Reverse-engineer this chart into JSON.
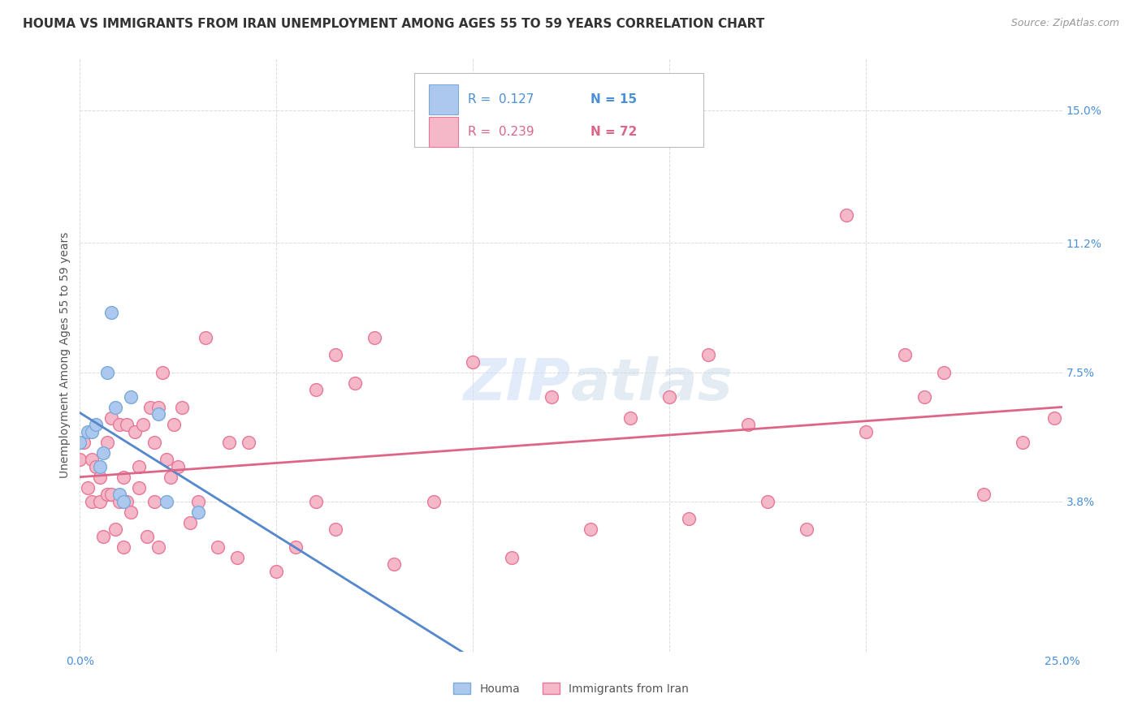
{
  "title": "HOUMA VS IMMIGRANTS FROM IRAN UNEMPLOYMENT AMONG AGES 55 TO 59 YEARS CORRELATION CHART",
  "source": "Source: ZipAtlas.com",
  "ylabel": "Unemployment Among Ages 55 to 59 years",
  "xlim": [
    0.0,
    0.25
  ],
  "ylim": [
    -0.005,
    0.165
  ],
  "xticks": [
    0.0,
    0.05,
    0.1,
    0.15,
    0.2,
    0.25
  ],
  "xticklabels": [
    "0.0%",
    "",
    "",
    "",
    "",
    "25.0%"
  ],
  "ytick_positions": [
    0.038,
    0.075,
    0.112,
    0.15
  ],
  "ytick_labels": [
    "3.8%",
    "7.5%",
    "11.2%",
    "15.0%"
  ],
  "watermark": "ZIPatlas",
  "houma_color": "#adc8ef",
  "iran_color": "#f5b8c8",
  "houma_edge": "#7aaad8",
  "iran_edge": "#e87898",
  "trendline_houma_color": "#5588cc",
  "trendline_iran_color": "#dd6688",
  "background_color": "#ffffff",
  "grid_color": "#cccccc",
  "title_fontsize": 11,
  "axis_label_fontsize": 10,
  "tick_fontsize": 10,
  "houma_x": [
    0.0,
    0.002,
    0.003,
    0.004,
    0.005,
    0.006,
    0.007,
    0.008,
    0.009,
    0.01,
    0.011,
    0.013,
    0.02,
    0.022,
    0.03
  ],
  "houma_y": [
    0.055,
    0.058,
    0.058,
    0.06,
    0.048,
    0.052,
    0.075,
    0.092,
    0.065,
    0.04,
    0.038,
    0.068,
    0.063,
    0.038,
    0.035
  ],
  "iran_x": [
    0.0,
    0.001,
    0.002,
    0.003,
    0.003,
    0.004,
    0.005,
    0.005,
    0.006,
    0.007,
    0.007,
    0.008,
    0.008,
    0.009,
    0.01,
    0.01,
    0.011,
    0.011,
    0.012,
    0.012,
    0.013,
    0.014,
    0.015,
    0.015,
    0.016,
    0.017,
    0.018,
    0.019,
    0.019,
    0.02,
    0.02,
    0.021,
    0.022,
    0.023,
    0.024,
    0.025,
    0.026,
    0.028,
    0.03,
    0.032,
    0.035,
    0.038,
    0.04,
    0.043,
    0.05,
    0.055,
    0.06,
    0.065,
    0.07,
    0.08,
    0.09,
    0.1,
    0.11,
    0.12,
    0.13,
    0.14,
    0.15,
    0.155,
    0.16,
    0.17,
    0.175,
    0.185,
    0.195,
    0.2,
    0.21,
    0.215,
    0.22,
    0.23,
    0.24,
    0.248,
    0.06,
    0.065,
    0.075
  ],
  "iran_y": [
    0.05,
    0.055,
    0.042,
    0.038,
    0.05,
    0.048,
    0.038,
    0.045,
    0.028,
    0.04,
    0.055,
    0.062,
    0.04,
    0.03,
    0.038,
    0.06,
    0.025,
    0.045,
    0.038,
    0.06,
    0.035,
    0.058,
    0.042,
    0.048,
    0.06,
    0.028,
    0.065,
    0.038,
    0.055,
    0.025,
    0.065,
    0.075,
    0.05,
    0.045,
    0.06,
    0.048,
    0.065,
    0.032,
    0.038,
    0.085,
    0.025,
    0.055,
    0.022,
    0.055,
    0.018,
    0.025,
    0.038,
    0.03,
    0.072,
    0.02,
    0.038,
    0.078,
    0.022,
    0.068,
    0.03,
    0.062,
    0.068,
    0.033,
    0.08,
    0.06,
    0.038,
    0.03,
    0.12,
    0.058,
    0.08,
    0.068,
    0.075,
    0.04,
    0.055,
    0.062,
    0.07,
    0.08,
    0.085
  ]
}
